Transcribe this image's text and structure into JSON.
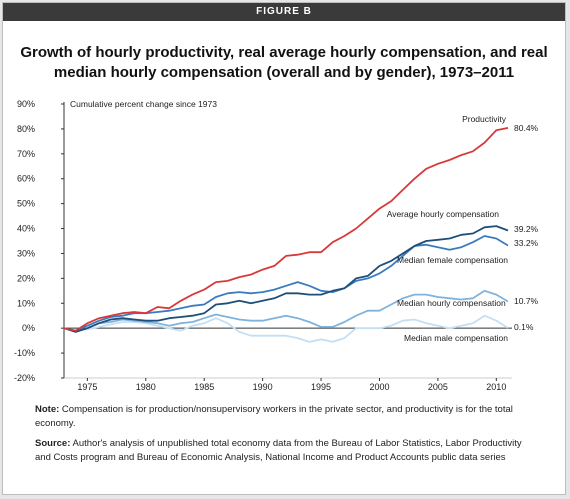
{
  "figure_label": "FIGURE B",
  "title": "Growth of hourly productivity, real average hourly compensation, and real median hourly compensation (overall and by gender), 1973–2011",
  "note": {
    "label": "Note:",
    "text": "Compensation is for production/nonsupervisory workers in the private sector, and productivity is for the total economy."
  },
  "source": {
    "label": "Source:",
    "text": "Author's analysis of unpublished total economy data from the Bureau of Labor Statistics, Labor Productivity and Costs program and Bureau of Economic Analysis, National Income and Product Accounts public data series"
  },
  "colors": {
    "productivity": "#d9383a",
    "average": "#1f4e79",
    "female": "#3a7bbf",
    "median": "#7fb3df",
    "male": "#c4dff4"
  },
  "chart_data": {
    "type": "line",
    "ylabel": "Cumulative percent change since 1973",
    "ylim": [
      -20,
      90
    ],
    "yticks": [
      -20,
      -10,
      0,
      10,
      20,
      30,
      40,
      50,
      60,
      70,
      80,
      90
    ],
    "ytick_labels": [
      "-20%",
      "-10%",
      "0%",
      "10%",
      "20%",
      "30%",
      "40%",
      "50%",
      "60%",
      "70%",
      "80%",
      "90%"
    ],
    "xlim": [
      1973,
      2011
    ],
    "xticks": [
      1975,
      1980,
      1985,
      1990,
      1995,
      2000,
      2005,
      2010
    ],
    "x": [
      1973,
      1974,
      1975,
      1976,
      1977,
      1978,
      1979,
      1980,
      1981,
      1982,
      1983,
      1984,
      1985,
      1986,
      1987,
      1988,
      1989,
      1990,
      1991,
      1992,
      1993,
      1994,
      1995,
      1996,
      1997,
      1998,
      1999,
      2000,
      2001,
      2002,
      2003,
      2004,
      2005,
      2006,
      2007,
      2008,
      2009,
      2010,
      2011
    ],
    "series": [
      {
        "name": "Productivity",
        "color_key": "productivity",
        "end_label": "80.4%",
        "values": [
          0,
          -1,
          2,
          4,
          5,
          6,
          6.5,
          6,
          8.5,
          8,
          11,
          13.5,
          15.5,
          18.5,
          19,
          20.5,
          21.5,
          23.5,
          25,
          29,
          29.5,
          30.5,
          30.5,
          34.5,
          37,
          40,
          44,
          48,
          51,
          55.5,
          60,
          64,
          66,
          67.5,
          69.5,
          71,
          74.5,
          79.5,
          80.4
        ]
      },
      {
        "name": "Average hourly compensation",
        "color_key": "average",
        "end_label": "39.2%",
        "values": [
          0,
          -1.5,
          0,
          2,
          3.5,
          4,
          3.5,
          3,
          3,
          4,
          4.5,
          5,
          6,
          9.5,
          10,
          11,
          10,
          11,
          12,
          14,
          14,
          13.5,
          13.5,
          15,
          16,
          20,
          21,
          25,
          27,
          30,
          33,
          35,
          35.5,
          36,
          37.5,
          38,
          40.5,
          41,
          39.2
        ]
      },
      {
        "name": "Median female compensation",
        "color_key": "female",
        "end_label": "33.2%",
        "values": [
          0,
          -1,
          1,
          3,
          4.5,
          5,
          6,
          6,
          6.5,
          7,
          8,
          9,
          9.5,
          12.5,
          14,
          14.5,
          14,
          14.5,
          15.5,
          17,
          18.5,
          17,
          15,
          14.5,
          16,
          19,
          20,
          22,
          25,
          29,
          33,
          33.5,
          32.5,
          31.5,
          32.5,
          34.5,
          37,
          36,
          33.2
        ]
      },
      {
        "name": "Median hourly compensation",
        "color_key": "median",
        "end_label": "10.7%",
        "values": [
          0,
          -1.5,
          0,
          2,
          2.5,
          3.5,
          3,
          2.5,
          2,
          1,
          2,
          2.5,
          4,
          5.5,
          4.5,
          3.5,
          3,
          3,
          4,
          5,
          4,
          2.5,
          0.5,
          0.5,
          2.5,
          5,
          7,
          7,
          9.5,
          12,
          13.5,
          13.5,
          12.5,
          12,
          11.5,
          12,
          15,
          13.5,
          10.7
        ]
      },
      {
        "name": "Median male compensation",
        "color_key": "male",
        "end_label": "0.1%",
        "values": [
          0,
          -1,
          -0.5,
          0.5,
          1.5,
          2.5,
          2.5,
          2,
          1,
          0,
          -1,
          1,
          2,
          4,
          2,
          -1.5,
          -3,
          -3,
          -3,
          -3,
          -4,
          -5.5,
          -4.5,
          -5.5,
          -4,
          0,
          0,
          0,
          1,
          3,
          3.5,
          2,
          1,
          0,
          1,
          2,
          5,
          3,
          0.1
        ]
      }
    ]
  }
}
